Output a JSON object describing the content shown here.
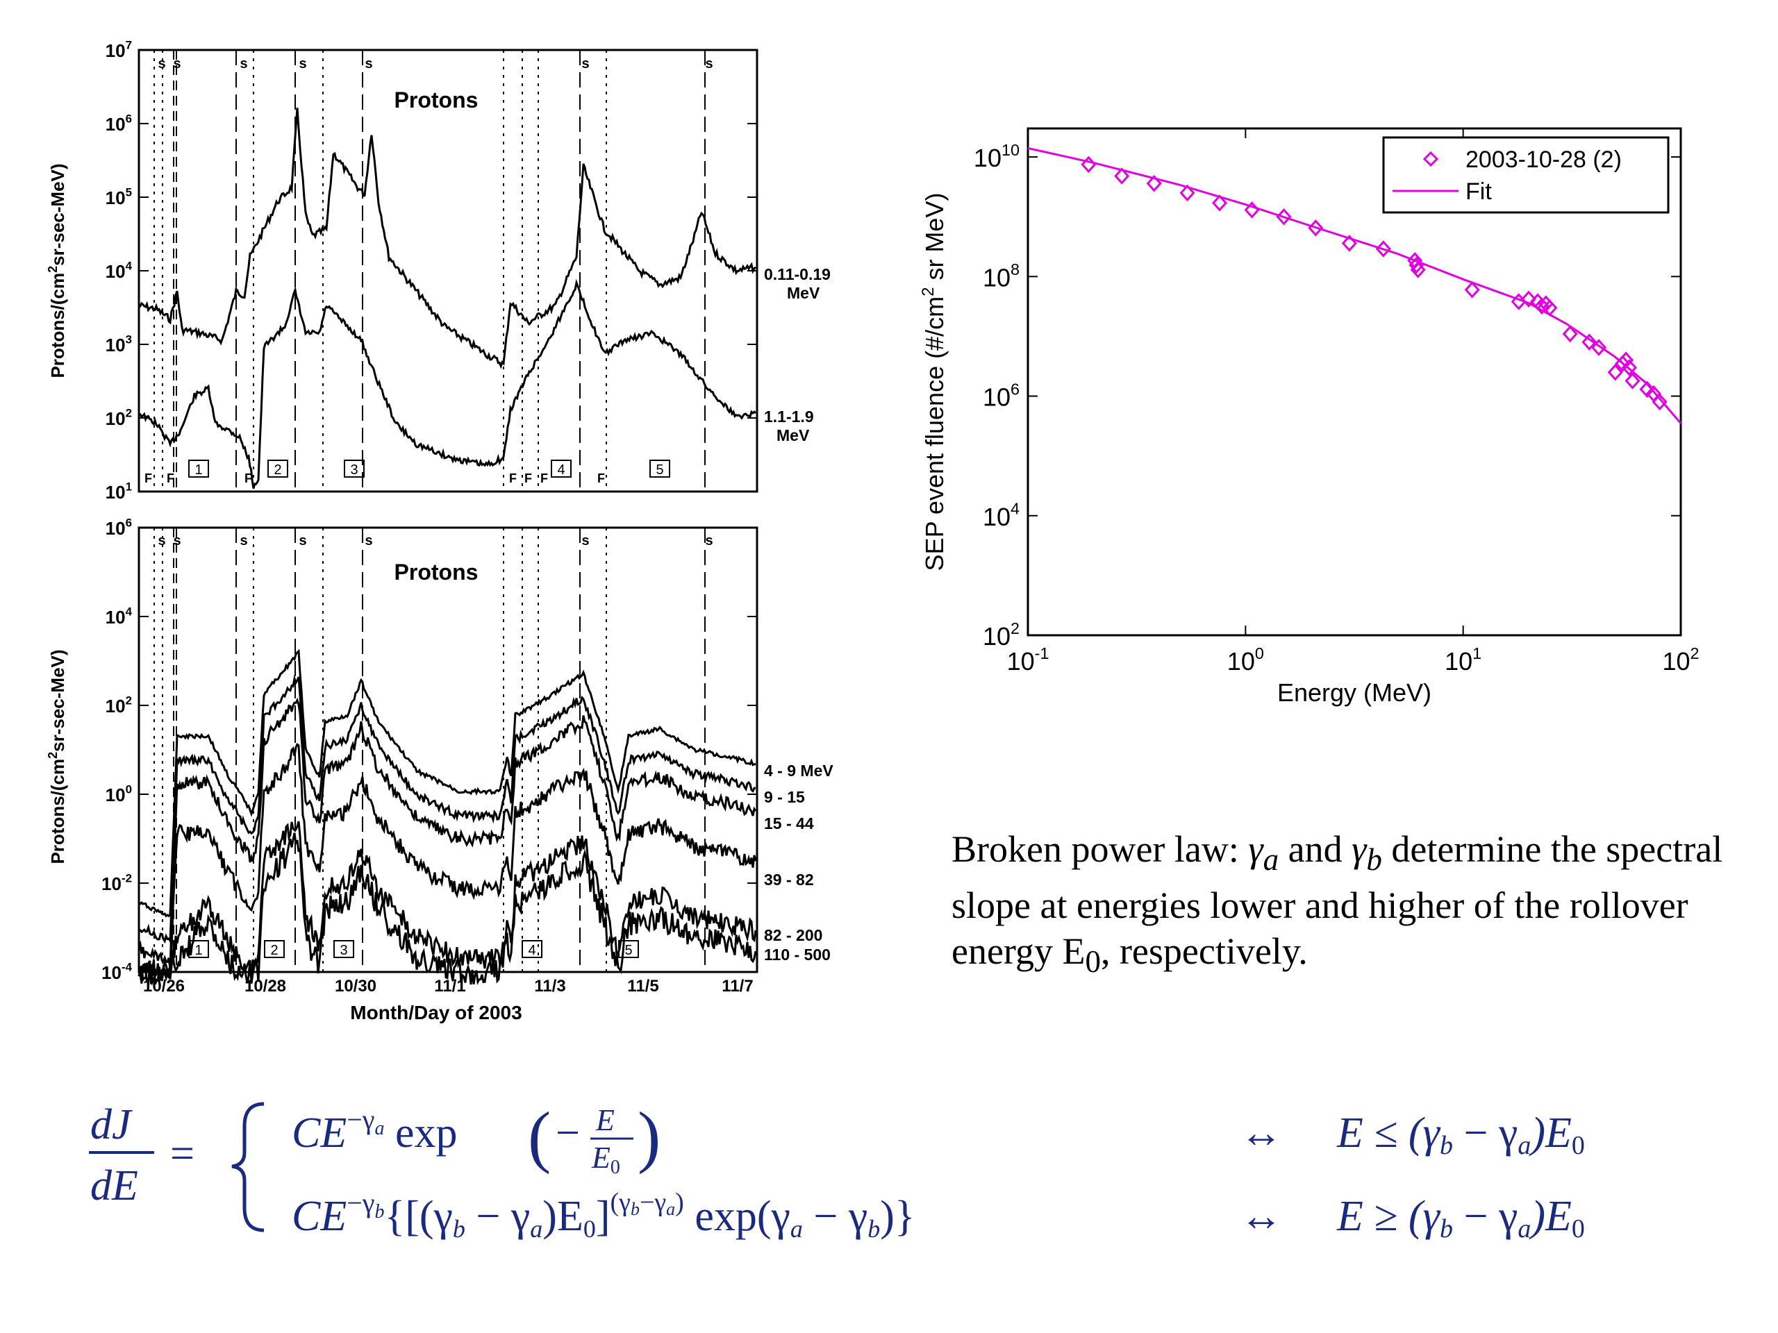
{
  "left_panels": {
    "top": {
      "title": "Protons",
      "ylabel_pre": "Protons/(cm",
      "ylabel_sup": "2",
      "ylabel_post": "sr-sec-MeV)",
      "y_exponents": [
        "1",
        "2",
        "3",
        "4",
        "5",
        "6",
        "7"
      ],
      "marker_s": "s",
      "marker_f": "F",
      "event_boxes": [
        "1",
        "2",
        "3",
        "4",
        "5"
      ],
      "channel_labels": [
        [
          "0.11-0.19",
          "MeV"
        ],
        [
          "1.1-1.9",
          "MeV"
        ]
      ]
    },
    "bottom": {
      "title": "Protons",
      "ylabel_pre": "Protons/(cm",
      "ylabel_sup": "2",
      "ylabel_post": "sr-sec-MeV)",
      "y_exponents": [
        "-4",
        "-2",
        "0",
        "2",
        "4",
        "6"
      ],
      "marker_s": "s",
      "event_boxes": [
        "1",
        "2",
        "3",
        "4",
        "5"
      ],
      "channel_labels": [
        "4 - 9 MeV",
        "9 - 15",
        "15 - 44",
        "39 - 82",
        "82 - 200",
        "110 - 500"
      ],
      "x_ticks": [
        "10/26",
        "10/28",
        "10/30",
        "11/1",
        "11/3",
        "11/5",
        "11/7"
      ],
      "xlabel": "Month/Day of 2003"
    },
    "tick_base": "10"
  },
  "chart_data": {
    "type": "scatter",
    "x_scale": "log",
    "y_scale": "log",
    "xlim": [
      0.1,
      100
    ],
    "ylim": [
      100,
      30000000000
    ],
    "xlabel": "Energy (MeV)",
    "ylabel_pre": "SEP event fluence (#/cm",
    "ylabel_sup": "2",
    "ylabel_post": " sr MeV)",
    "tick_base": "10",
    "x_tick_exponents": [
      "-1",
      "0",
      "1",
      "2"
    ],
    "y_tick_exponents": [
      "2",
      "4",
      "6",
      "8",
      "10"
    ],
    "legend_position": "top-right",
    "series": [
      {
        "name": "2003-10-28 (2)",
        "marker": "diamond",
        "color": "#e000e0",
        "x": [
          0.19,
          0.27,
          0.38,
          0.54,
          0.76,
          1.07,
          1.5,
          2.1,
          3.0,
          4.3,
          6.0,
          6.1,
          6.2,
          11,
          18,
          20,
          22,
          23,
          24,
          25,
          31,
          38,
          42,
          50,
          54,
          56,
          58,
          60,
          70,
          75,
          80
        ],
        "y": [
          7500000000.0,
          4800000000.0,
          3600000000.0,
          2500000000.0,
          1700000000.0,
          1300000000.0,
          1000000000.0,
          650000000.0,
          360000000.0,
          290000000.0,
          185000000.0,
          155000000.0,
          130000000.0,
          60000000.0,
          38000000.0,
          42000000.0,
          38000000.0,
          32000000.0,
          35000000.0,
          30000000.0,
          11000000.0,
          8000000.0,
          6500000.0,
          2500000.0,
          3500000.0,
          4000000.0,
          3000000.0,
          1800000.0,
          1300000.0,
          1100000.0,
          800000.0
        ]
      },
      {
        "name": "Fit",
        "line": true,
        "color": "#e000e0",
        "x": [
          0.1,
          0.2,
          0.5,
          1,
          2,
          5,
          10,
          20,
          30,
          50,
          70,
          100
        ],
        "y": [
          14000000000.0,
          8000000000.0,
          3400000000.0,
          1600000000.0,
          700000000.0,
          240000000.0,
          90000000.0,
          36000000.0,
          16000000.0,
          4500000.0,
          1600000.0,
          350000.0
        ]
      }
    ]
  },
  "description": {
    "part1": "Broken power law: ",
    "gamma": "γ",
    "sub_a": "a",
    "mid": " and ",
    "sub_b": "b",
    "part2": " determine the spectral slope at energies lower and higher of the rollover energy E",
    "sub_0": "0",
    "part3": ", respectively."
  },
  "equation": {
    "frac_num": "dJ",
    "frac_den": "dE",
    "equals": "=",
    "case1_base": "CE",
    "case1_exp": "−γ",
    "case1_exp_sub": "a",
    "case1_rest": " exp",
    "case1_frac_num": "E",
    "case1_frac_den": "E",
    "case1_frac_den_sub": "0",
    "case1_minus": "−",
    "case2_base": "CE",
    "case2_exp": "−γ",
    "case2_exp_sub": "b",
    "case2_rest": "{[(γ",
    "case2_rest_b": "b",
    "case2_rest_2": " − γ",
    "case2_rest_a": "a",
    "case2_rest_3": ")E",
    "case2_rest_0": "0",
    "case2_rest_4": "]",
    "case2_power": "(γ",
    "case2_power_b": "b",
    "case2_power_2": "−γ",
    "case2_power_a": "a",
    "case2_power_3": ")",
    "case2_tail": " exp(γ",
    "case2_tail_a": "a",
    "case2_tail_2": " − γ",
    "case2_tail_b": "b",
    "case2_tail_3": ")}",
    "arrow": "↔",
    "cond1": "E ≤ (γ",
    "cond2": "E ≥ (γ",
    "cond_b": "b",
    "cond_mid": " − γ",
    "cond_a": "a",
    "cond_end": ")E",
    "cond_0": "0"
  }
}
